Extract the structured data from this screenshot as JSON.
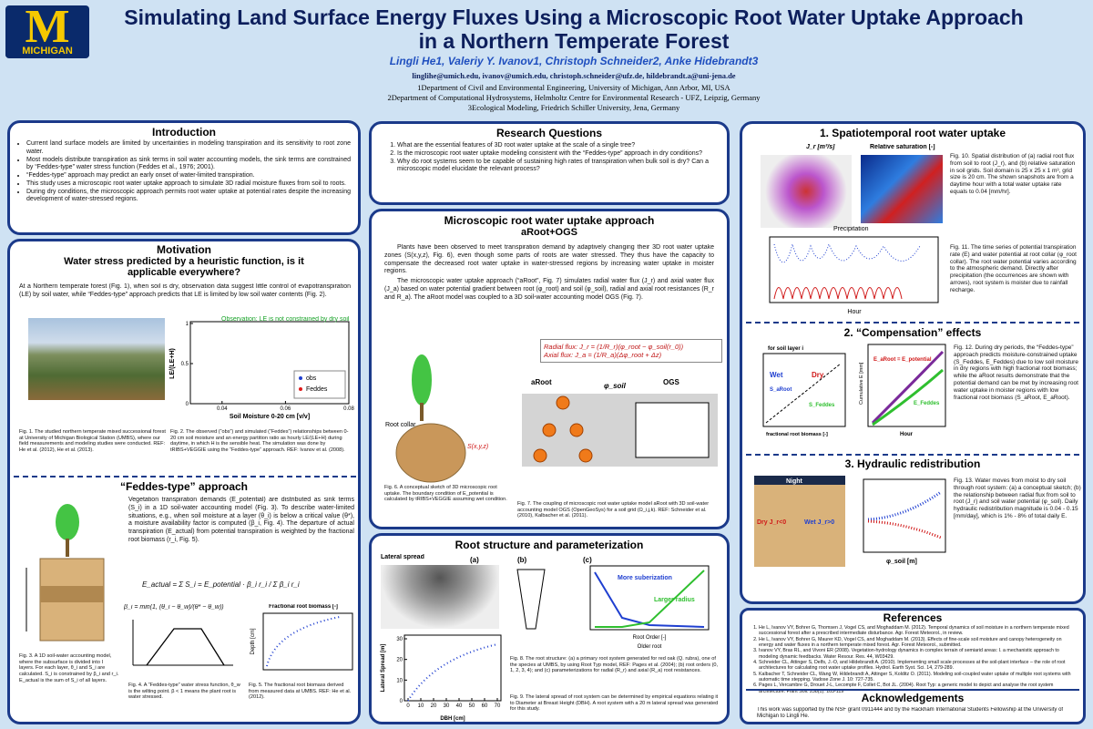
{
  "header": {
    "logo_letter": "M",
    "logo_text": "MICHIGAN",
    "title": "Simulating Land Surface Energy Fluxes Using a Microscopic Root Water Uptake Approach in a Northern Temperate Forest",
    "authors": "Lingli He1, Valeriy Y. Ivanov1, Christoph Schneider2, Anke Hidebrandt3",
    "emails": "linglihe@umich.edu, ivanov@umich.edu, christoph.schneider@ufz.de, hildebrandt.a@uni-jena.de",
    "affiliations": [
      "1Department of Civil and Environmental Engineering, University of Michigan, Ann Arbor, MI, USA",
      "2Department of Computational Hydrosystems, Helmholtz Centre for Environmental Research - UFZ, Leipzig, Germany",
      "3Ecological Modeling, Friedrich Schiller University, Jena, Germany"
    ]
  },
  "introduction": {
    "title": "Introduction",
    "bullets": [
      "Current land surface models are limited by uncertainties in modeling transpiration and its sensitivity to root zone water.",
      "Most models distribute transpiration as sink terms in soil water accounting models, the sink terms are constrained by “Feddes-type” water stress function (Feddes et al., 1976; 2001).",
      "“Feddes-type” approach may predict an early onset of water-limited transpiration.",
      "This study uses a microscopic root water uptake approach to simulate 3D radial moisture fluxes from soil to roots.",
      "During dry conditions, the microscopic approach permits root water uptake at potential rates despite the increasing development of water-stressed regions."
    ]
  },
  "motivation": {
    "title": "Motivation",
    "subtitle": "Water stress predicted by a heuristic function, is it applicable everywhere?",
    "text": "At a Northern temperate forest (Fig. 1), when soil is dry, observation data suggest little control of evapotranspiration (LE) by soil water, while “Feddes-type” approach predicts that LE is limited by low soil water contents (Fig. 2).",
    "annotation": "Observation: LE is not constrained by dry soil",
    "fig2_ylabel": "LE/(LE+H)",
    "fig2_xlabel": "Soil Moisture 0-20 cm [v/v]",
    "fig2_xticks": [
      0.04,
      0.06,
      0.08
    ],
    "fig2_yticks": [
      0,
      0.5,
      1
    ],
    "legend": [
      "obs",
      "Feddes"
    ],
    "fig1_caption": "Fig. 1. The studied northern temperate mixed successional forest at University of Michigan Biological Station (UMBS), where our field measurements and modeling studies were conducted. REF: He et al. (2012), He et al. (2013).",
    "fig2_caption": "Fig. 2. The observed (“obs”) and simulated (“Feddes”) relationships between 0-20 cm soil moisture and an energy partition ratio as hourly LE/(LE+H) during daytime, in which H is the sensible heat. The simulation was done by tRIBS+VEGGIE using the “Feddes-type” approach. REF: Ivanov et al. (2008)."
  },
  "feddes": {
    "title": "“Feddes-type” approach",
    "text": "Vegetation transpiration demands (E_potential) are distributed as sink terms (S_i) in a 1D soil-water accounting model (Fig. 3). To describe water-limited situations, e.g., when soil moisture at a layer (θ_i) is below a critical value (θ*), a moisture availability factor is computed (β_i, Fig. 4). The departure of actual transpiration (E_actual) from potential transpiration is weighted by the fractional root biomass (r_i, Fig. 5).",
    "equation": "E_actual = Σ S_i = E_potential · β_i r_i / Σ β_i r_i",
    "beta_equation": "β_i = min(1, (θ_i − θ_w)/(θ* − θ_w))",
    "fig5_title": "Fractional root biomass [-]",
    "fig5_ylabel": "Depth [cm]",
    "fig3_caption": "Fig. 3. A 1D soil-water accounting model, where the subsurface is divided into I layers. For each layer, θ_i and S_i are calculated. S_i is constrained by β_i and r_i. E_actual is the sum of S_i of all layers.",
    "fig4_caption": "Fig. 4. A “Feddes-type” water stress function, θ_w is the wilting point. β < 1 means the plant root is water stressed.",
    "fig5_caption": "Fig. 5. The fractional root biomass derived from measured data at UMBS. REF: He et al. (2012)."
  },
  "research_questions": {
    "title": "Research Questions",
    "items": [
      "What are the essential features of 3D root water uptake at the scale of a single tree?",
      "Is the microscopic root water uptake modeling consistent with the “Feddes-type” approach in dry conditions?",
      "Why do root systems seem to be capable of sustaining high rates of transpiration when bulk soil is dry? Can a microscopic model elucidate the relevant process?"
    ]
  },
  "microscopic": {
    "title": "Microscopic root water uptake approach",
    "subtitle": "aRoot+OGS",
    "paragraphs": [
      "Plants have been observed to meet transpiration demand by adaptively changing their 3D root water uptake zones (S(x,y,z), Fig. 6), even though some parts of roots are water stressed. They thus have the capacity to compensate the decreased root water uptake in water-stressed regions by increasing water uptake in moister regions.",
      "The microscopic water uptake approach (“aRoot”, Fig. 7) simulates radial water flux (J_r) and axial water flux (J_a) based on water potential gradient between root (φ_root) and soil (φ_soil), radial and axial root resistances (R_r and R_a). The aRoot model was coupled to a 3D soil-water accounting model OGS (Fig. 7)."
    ],
    "radial": "Radial flux: J_r = (1/R_r)(φ_root − φ_soil(r_0))",
    "axial": "Axial flux: J_a = (1/R_a)(Δφ_root + Δz)",
    "labels": [
      "aRoot",
      "OGS",
      "φ_soil",
      "Root collar",
      "S(x,y,z)"
    ],
    "fig6_caption": "Fig. 6. A conceptual sketch of 3D microscopic root uptake. The boundary condition of E_potential is calculated by tRIBS+VEGGIE assuming wet condition.",
    "fig7_caption": "Fig. 7. The coupling of microscopic root water uptake model aRoot with 3D soil-water accounting model OGS (OpenGeoSys) for a soil grid (Ω_i,j,k). REF: Schneider et al. (2010), Kalbacher et al. (2011)."
  },
  "root_structure": {
    "title": "Root structure and parameterization",
    "labels": [
      "Lateral spread",
      "(a)",
      "(b)",
      "(c)",
      "More suberization",
      "Larger radius",
      "Root Order [-]",
      "Older root"
    ],
    "fig9_ylabel": "Lateral Spread [m]",
    "fig9_xlabel": "DBH [cm]",
    "fig9_xticks": [
      0,
      10,
      20,
      30,
      40,
      50,
      60,
      70
    ],
    "fig9_yticks": [
      0,
      10,
      20,
      30
    ],
    "fig8_caption": "Fig. 8. The root structure: (a) a primary root system generated for red oak (Q. rubra), one of the species at UMBS, by using Root Typ model, REF: Pages et al. (2004); (b) root orders (0, 1, 2, 3, 4); and (c) parameterizations for radial (R_r) and axial (R_a) root resistances.",
    "fig9_caption": "Fig. 9. The lateral spread of root system can be determined by empirical equations relating it to Diameter at Breast Height (DBH). A root system with a 20 m lateral spread was generated for this study."
  },
  "results": {
    "spatiotemporal": {
      "title": "1. Spatiotemporal root water uptake",
      "labels": [
        "J_r [m³/s]",
        "Relative saturation [-]",
        "Precipitation",
        "Hour"
      ],
      "fig10_caption": "Fig. 10. Spatial distribution of (a) radial root flux from soil to root (J_r), and (b) relative saturation in soil grids. Soil domain is 25 x 25 x 1 m³, grid size is 20 cm. The shown snapshots are from a daytime hour with a total water uptake rate equals to 0.04 [mm/hr].",
      "fig11_caption": "Fig. 11. The time series of potential transpiration rate (E) and water potential at root collar (φ_root collar). The root water potential varies according to the atmospheric demand. Directly after precipitation (the occurrences are shown with arrows), root system is moister due to rainfall recharge."
    },
    "compensation": {
      "title": "2. “Compensation” effects",
      "labels": [
        "for soil layer i",
        "Wet",
        "Dry",
        "S_aRoot",
        "S_Feddes",
        "E_aRoot = E_potential",
        "E_Feddes",
        "fractional root biomass [-]",
        "Cumulative E [mm]",
        "Hour"
      ],
      "fig12_caption": "Fig. 12. During dry periods, the “Feddes-type” approach predicts moisture-constrained uptake (S_Feddes, E_Feddes) due to low soil moisture in dry regions with high fractional root biomass; while the aRoot results demonstrate that the potential demand can be met by increasing root water uptake in moister regions with low fractional root biomass (S_aRoot, E_aRoot)."
    },
    "hydraulic": {
      "title": "3. Hydraulic redistribution",
      "labels": [
        "Night",
        "Dry J_r<0",
        "Wet J_r>0",
        "φ_soil [m]"
      ],
      "fig13_caption": "Fig. 13. Water moves from moist to dry soil through root system: (a) a conceptual sketch; (b) the relationship between radial flux from soil to root (J_r) and soil water potential (φ_soil). Daily hydraulic redistribution magnitude is 0.04 - 0.15 [mm/day], which is 1% - 8% of total daily E."
    }
  },
  "references": {
    "title": "References",
    "items": [
      "He L, Ivanov VY, Bohrer G, Thomsen J, Vogel CS, and Moghaddam M. (2012). Temporal dynamics of soil moisture in a northern temperate mixed successional forest after a prescribed intermediate disturbance. Agr. Forest Meteorol., in review.",
      "He L, Ivanov VY, Bohrer G, Maurer KD, Vogel CS, and Moghaddam M. (2013). Effects of fine-scale soil moisture and canopy heterogeneity on energy and water fluxes in a northern temperate mixed forest. Agr. Forest Meteorol., submitted.",
      "Ivanov VY, Bras RL, and Vivoni ER (2008). Vegetation-hydrology dynamics in complex terrain of semiarid areas: I. a mechanistic approach to modeling dynamic feedbacks. Water Resour. Res. 44, W03429.",
      "Schneider CL, Attinger S, Delfs, J.-O, and Hildebrandt A. (2010). Implementing small scale processes at the soil-plant interface – the role of root architectures for calculating root water uptake profiles. Hydrol. Earth Syst. Sci. 14, 279-289.",
      "Kalbacher T, Schneider CL, Wang W, Hildebrandt A, Attinger S, Kolditz O. (2011). Modeling soil-coupled water uptake of multiple root systems with automatic time stepping. Vadose Zone J. 10: 727-735.",
      "Pages L, Vercambre G, Drouet J-L, Lecompte F, Collet C, Bot JL. (2004). Root Typ: a generic model to depict and analyse the root system architecture. Plant Soil. 258(1): 103-119"
    ]
  },
  "acknowledgements": {
    "title": "Acknowledgements",
    "text": "This work was supported by the NSF grant 0911444 and by the Rackham International Students Fellowship at the University of Michigan to Lingli He."
  }
}
